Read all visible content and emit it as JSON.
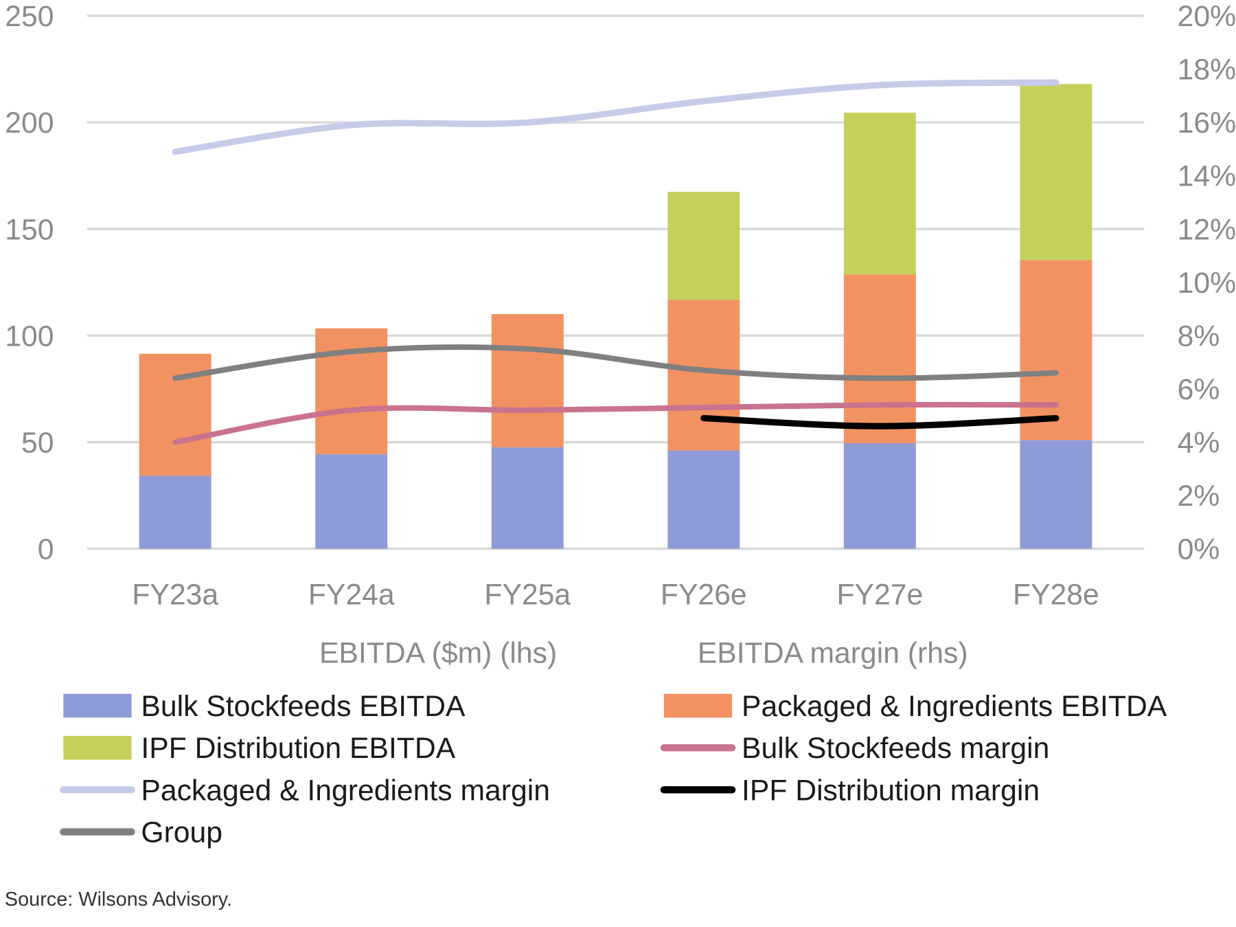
{
  "chart_data": {
    "type": "bar",
    "subtype": "stacked bar with line overlays (dual axis)",
    "categories": [
      "FY23a",
      "FY24a",
      "FY25a",
      "FY26e",
      "FY27e",
      "FY28e"
    ],
    "left_axis": {
      "label": "EBITDA ($m) (lhs)",
      "ylim": [
        0,
        250
      ],
      "ticks": [
        0,
        50,
        100,
        150,
        200,
        250
      ],
      "tick_labels": [
        "0",
        "50",
        "100",
        "150",
        "200",
        "250"
      ]
    },
    "right_axis": {
      "label": "EBITDA margin (rhs)",
      "ylim": [
        0,
        20
      ],
      "ticks": [
        0,
        2,
        4,
        6,
        8,
        10,
        12,
        14,
        16,
        18,
        20
      ],
      "tick_labels": [
        "0%",
        "2%",
        "4%",
        "6%",
        "8%",
        "10%",
        "12%",
        "14%",
        "16%",
        "18%",
        "20%"
      ]
    },
    "grid": true,
    "legend_placement": "bottom",
    "bar_series": [
      {
        "name": "Bulk Stockfeeds EBITDA",
        "color": "#8e9bd6",
        "values": [
          34.2,
          44.3,
          47.6,
          46.1,
          49.5,
          51.0
        ]
      },
      {
        "name": "Packaged & Ingredients EBITDA",
        "color": "#f29263",
        "values": [
          57.3,
          59.1,
          62.5,
          70.7,
          79.2,
          84.4
        ]
      },
      {
        "name": "IPF Distribution EBITDA",
        "color": "#c5cf5c",
        "values": [
          0,
          0,
          0,
          50.6,
          75.9,
          82.6
        ]
      }
    ],
    "line_series": [
      {
        "name": "Bulk Stockfeeds margin",
        "color": "#c9738f",
        "width": 7,
        "values": [
          4.0,
          5.2,
          5.2,
          5.3,
          5.4,
          5.4
        ]
      },
      {
        "name": "Packaged & Ingredients margin",
        "color": "#c7cbea",
        "width": 8,
        "values": [
          14.9,
          15.9,
          16.0,
          16.8,
          17.4,
          17.5
        ]
      },
      {
        "name": "IPF Distribution margin",
        "color": "#000000",
        "width": 8,
        "values": [
          null,
          null,
          null,
          4.9,
          4.6,
          4.9
        ]
      },
      {
        "name": "Group",
        "color": "#808080",
        "width": 7,
        "values": [
          6.4,
          7.4,
          7.5,
          6.7,
          6.4,
          6.6
        ]
      }
    ],
    "legend_order": [
      "Bulk Stockfeeds EBITDA",
      "Packaged & Ingredients EBITDA",
      "IPF Distribution EBITDA",
      "Bulk Stockfeeds margin",
      "Packaged & Ingredients margin",
      "IPF Distribution margin",
      "Group"
    ]
  },
  "source": "Source: Wilsons Advisory."
}
